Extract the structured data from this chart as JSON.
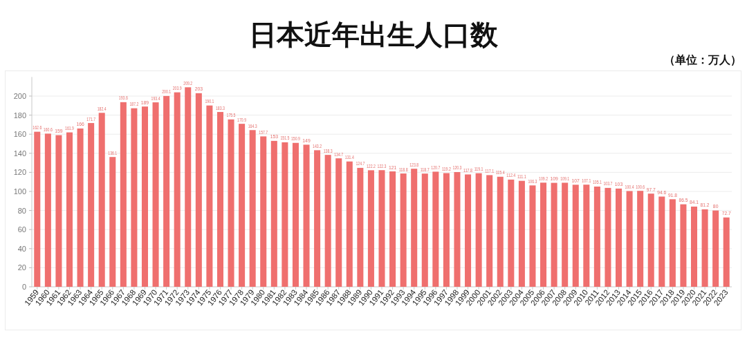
{
  "chart_data": {
    "type": "bar",
    "title": "日本近年出生人口数",
    "subtitle": "（单位：万人）",
    "categories": [
      "1959",
      "1960",
      "1961",
      "1962",
      "1963",
      "1964",
      "1965",
      "1966",
      "1967",
      "1968",
      "1969",
      "1970",
      "1971",
      "1972",
      "1973",
      "1974",
      "1975",
      "1976",
      "1977",
      "1978",
      "1979",
      "1980",
      "1981",
      "1982",
      "1983",
      "1984",
      "1985",
      "1986",
      "1987",
      "1988",
      "1989",
      "1990",
      "1991",
      "1992",
      "1993",
      "1994",
      "1995",
      "1996",
      "1997",
      "1998",
      "1999",
      "2000",
      "2001",
      "2002",
      "2003",
      "2004",
      "2005",
      "2006",
      "2007",
      "2008",
      "2009",
      "2010",
      "2011",
      "2012",
      "2013",
      "2014",
      "2015",
      "2016",
      "2017",
      "2018",
      "2019",
      "2020",
      "2021",
      "2022",
      "2023"
    ],
    "values": [
      162.6,
      160.6,
      159,
      161.9,
      166,
      171.7,
      182.4,
      136.1,
      193.6,
      187.2,
      189,
      193.4,
      200.1,
      203.9,
      209.2,
      203,
      190.1,
      183.3,
      175.5,
      170.9,
      164.3,
      157.7,
      153,
      151.5,
      150.9,
      149,
      143.2,
      138.3,
      134.7,
      131.4,
      124.7,
      122.2,
      122.3,
      121,
      118.8,
      123.8,
      118.7,
      120.7,
      119.2,
      120.3,
      117.8,
      119.1,
      117.1,
      115.4,
      112.4,
      111.1,
      106.3,
      109.2,
      109,
      109.1,
      107,
      107.1,
      105.1,
      103.7,
      103,
      100.4,
      100.6,
      97.7,
      94.6,
      91.8,
      86.5,
      84.1,
      81.2,
      80,
      72.7
    ],
    "color": "#ef6f6e",
    "ylim": [
      0,
      220
    ],
    "yticks": [
      0,
      20,
      40,
      60,
      80,
      100,
      120,
      140,
      160,
      180,
      200
    ],
    "grid": "y",
    "data_labels": true
  }
}
